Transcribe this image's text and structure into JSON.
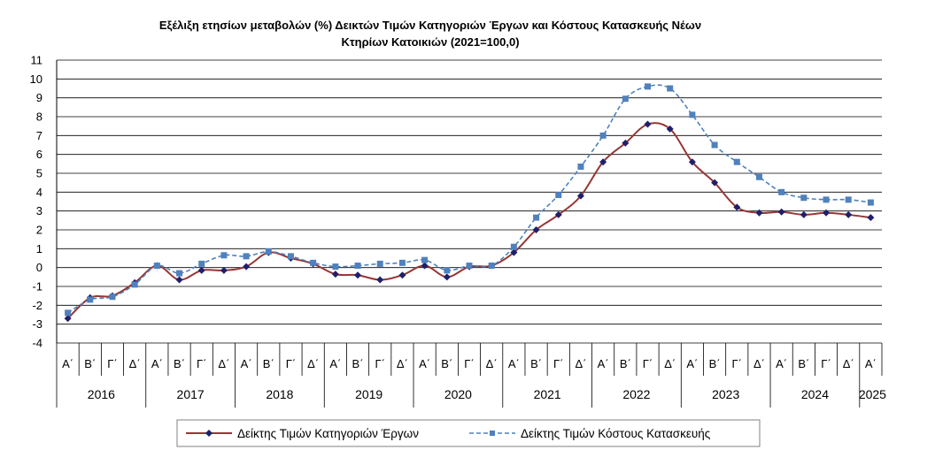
{
  "chart_data": {
    "type": "line",
    "title": "Εξέλιξη ετησίων μεταβολών (%) Δεικτών Τιμών Κατηγοριών Έργων και Κόστους Κατασκευής Νέων Κτηρίων Κατοικιών (2021=100,0)",
    "title_lines": [
      "Εξέλιξη ετησίων μεταβολών (%) Δεικτών Τιμών Κατηγοριών Έργων και Κόστους Κατασκευής Νέων",
      "Κτηρίων Κατοικιών (2021=100,0)"
    ],
    "ylim": [
      -4,
      11
    ],
    "yticks": [
      "-4",
      "-3",
      "-2",
      "-1",
      "0",
      "1",
      "2",
      "3",
      "4",
      "5",
      "6",
      "7",
      "8",
      "9",
      "10",
      "11"
    ],
    "grid": true,
    "legend_position": "bottom",
    "categories": [
      "Α΄",
      "Β΄",
      "Γ΄",
      "Δ΄",
      "Α΄",
      "Β΄",
      "Γ΄",
      "Δ΄",
      "Α΄",
      "Β΄",
      "Γ΄",
      "Δ΄",
      "Α΄",
      "Β΄",
      "Γ΄",
      "Δ΄",
      "Α΄",
      "Β΄",
      "Γ΄",
      "Δ΄",
      "Α΄",
      "Β΄",
      "Γ΄",
      "Δ΄",
      "Α΄",
      "Β΄",
      "Γ΄",
      "Δ΄",
      "Α΄",
      "Β΄",
      "Γ΄",
      "Δ΄",
      "Α΄",
      "Β΄",
      "Γ΄",
      "Δ΄",
      "Α΄"
    ],
    "years": [
      "2016",
      "2017",
      "2018",
      "2019",
      "2020",
      "2021",
      "2022",
      "2023",
      "2024",
      "2025"
    ],
    "series": [
      {
        "name": "Δείκτης Τιμών Κατηγοριών Έργων",
        "color": "#953735",
        "marker_color": "#1F1F6B",
        "marker": "diamond",
        "dash": "solid",
        "values": [
          -2.7,
          -1.6,
          -1.5,
          -0.8,
          0.1,
          -0.65,
          -0.15,
          -0.15,
          0.05,
          0.8,
          0.5,
          0.2,
          -0.35,
          -0.4,
          -0.65,
          -0.4,
          0.1,
          -0.5,
          0.05,
          0.1,
          0.8,
          2.0,
          2.8,
          3.8,
          5.6,
          6.6,
          7.6,
          7.35,
          5.6,
          4.5,
          3.2,
          2.9,
          2.95,
          2.8,
          2.9,
          2.8,
          2.65
        ]
      },
      {
        "name": "Δείκτης Τιμών Κόστους Κατασκευής",
        "color": "#4F81BD",
        "marker_color": "#4F81BD",
        "marker": "square",
        "dash": "dashed",
        "values": [
          -2.4,
          -1.7,
          -1.55,
          -0.9,
          0.1,
          -0.3,
          0.2,
          0.65,
          0.6,
          0.85,
          0.6,
          0.25,
          0.05,
          0.1,
          0.2,
          0.25,
          0.4,
          -0.15,
          0.1,
          0.1,
          1.1,
          2.65,
          3.85,
          5.35,
          7.0,
          8.95,
          9.6,
          9.5,
          8.1,
          6.5,
          5.6,
          4.8,
          4.0,
          3.7,
          3.6,
          3.6,
          3.45
        ]
      }
    ]
  }
}
